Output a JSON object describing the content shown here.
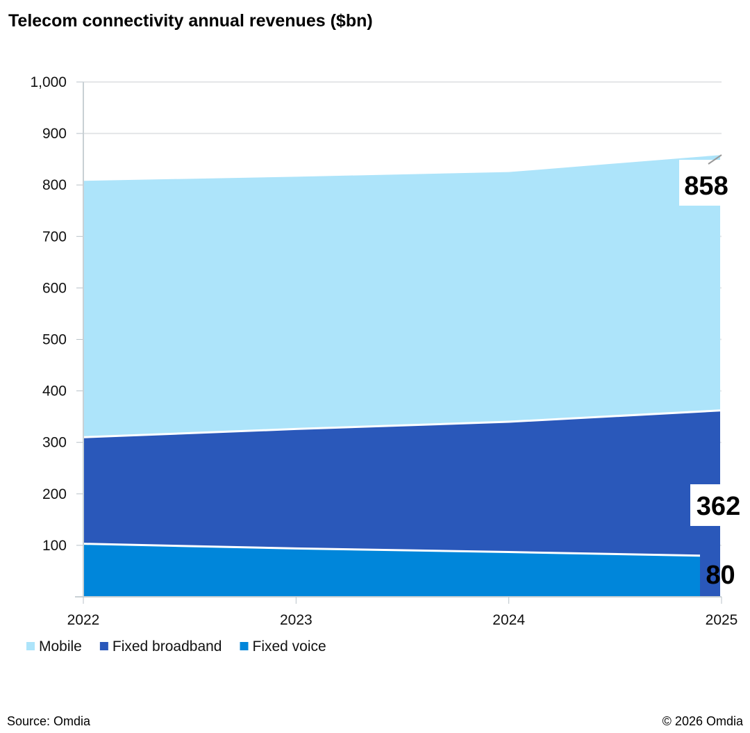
{
  "chart_data": {
    "type": "area",
    "title": "Telecom connectivity annual revenues ($bn)",
    "x": [
      "2022",
      "2023",
      "2024",
      "2025"
    ],
    "ylim": [
      0,
      1000
    ],
    "yticks": [
      "100",
      "200",
      "300",
      "400",
      "500",
      "600",
      "700",
      "800",
      "900",
      "1,000"
    ],
    "ytick_values": [
      100,
      200,
      300,
      400,
      500,
      600,
      700,
      800,
      900,
      1000
    ],
    "grid": true,
    "legend_placement": "bottom-left",
    "series": [
      {
        "name": "Mobile",
        "values": [
          808,
          816,
          825,
          858
        ],
        "color": "#ade4fa",
        "end_label": "858"
      },
      {
        "name": "Fixed broadband",
        "values": [
          310,
          326,
          340,
          362
        ],
        "color": "#2a58ba",
        "end_label": "362"
      },
      {
        "name": "Fixed voice",
        "values": [
          103,
          94,
          87,
          80
        ],
        "color": "#0086da",
        "end_label": "80"
      }
    ]
  },
  "footer": {
    "source": "Source: Omdia",
    "copyright": "© 2026 Omdia"
  }
}
